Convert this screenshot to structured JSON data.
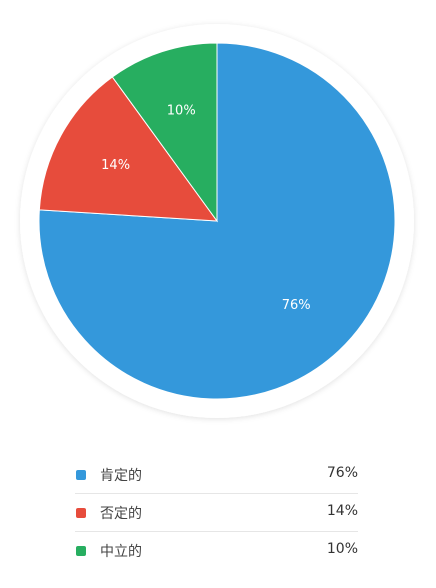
{
  "chart_data": {
    "type": "pie",
    "title": "",
    "slices": [
      {
        "label": "肯定的",
        "value": 76,
        "display": "76%",
        "color": "#3498db"
      },
      {
        "label": "否定的",
        "value": 14,
        "display": "14%",
        "color": "#e74c3c"
      },
      {
        "label": "中立的",
        "value": 10,
        "display": "10%",
        "color": "#27ae60"
      }
    ],
    "legend_position": "bottom"
  },
  "legend": {
    "items": [
      {
        "label": "肯定的",
        "value": "76%"
      },
      {
        "label": "否定的",
        "value": "14%"
      },
      {
        "label": "中立的",
        "value": "10%"
      }
    ]
  }
}
